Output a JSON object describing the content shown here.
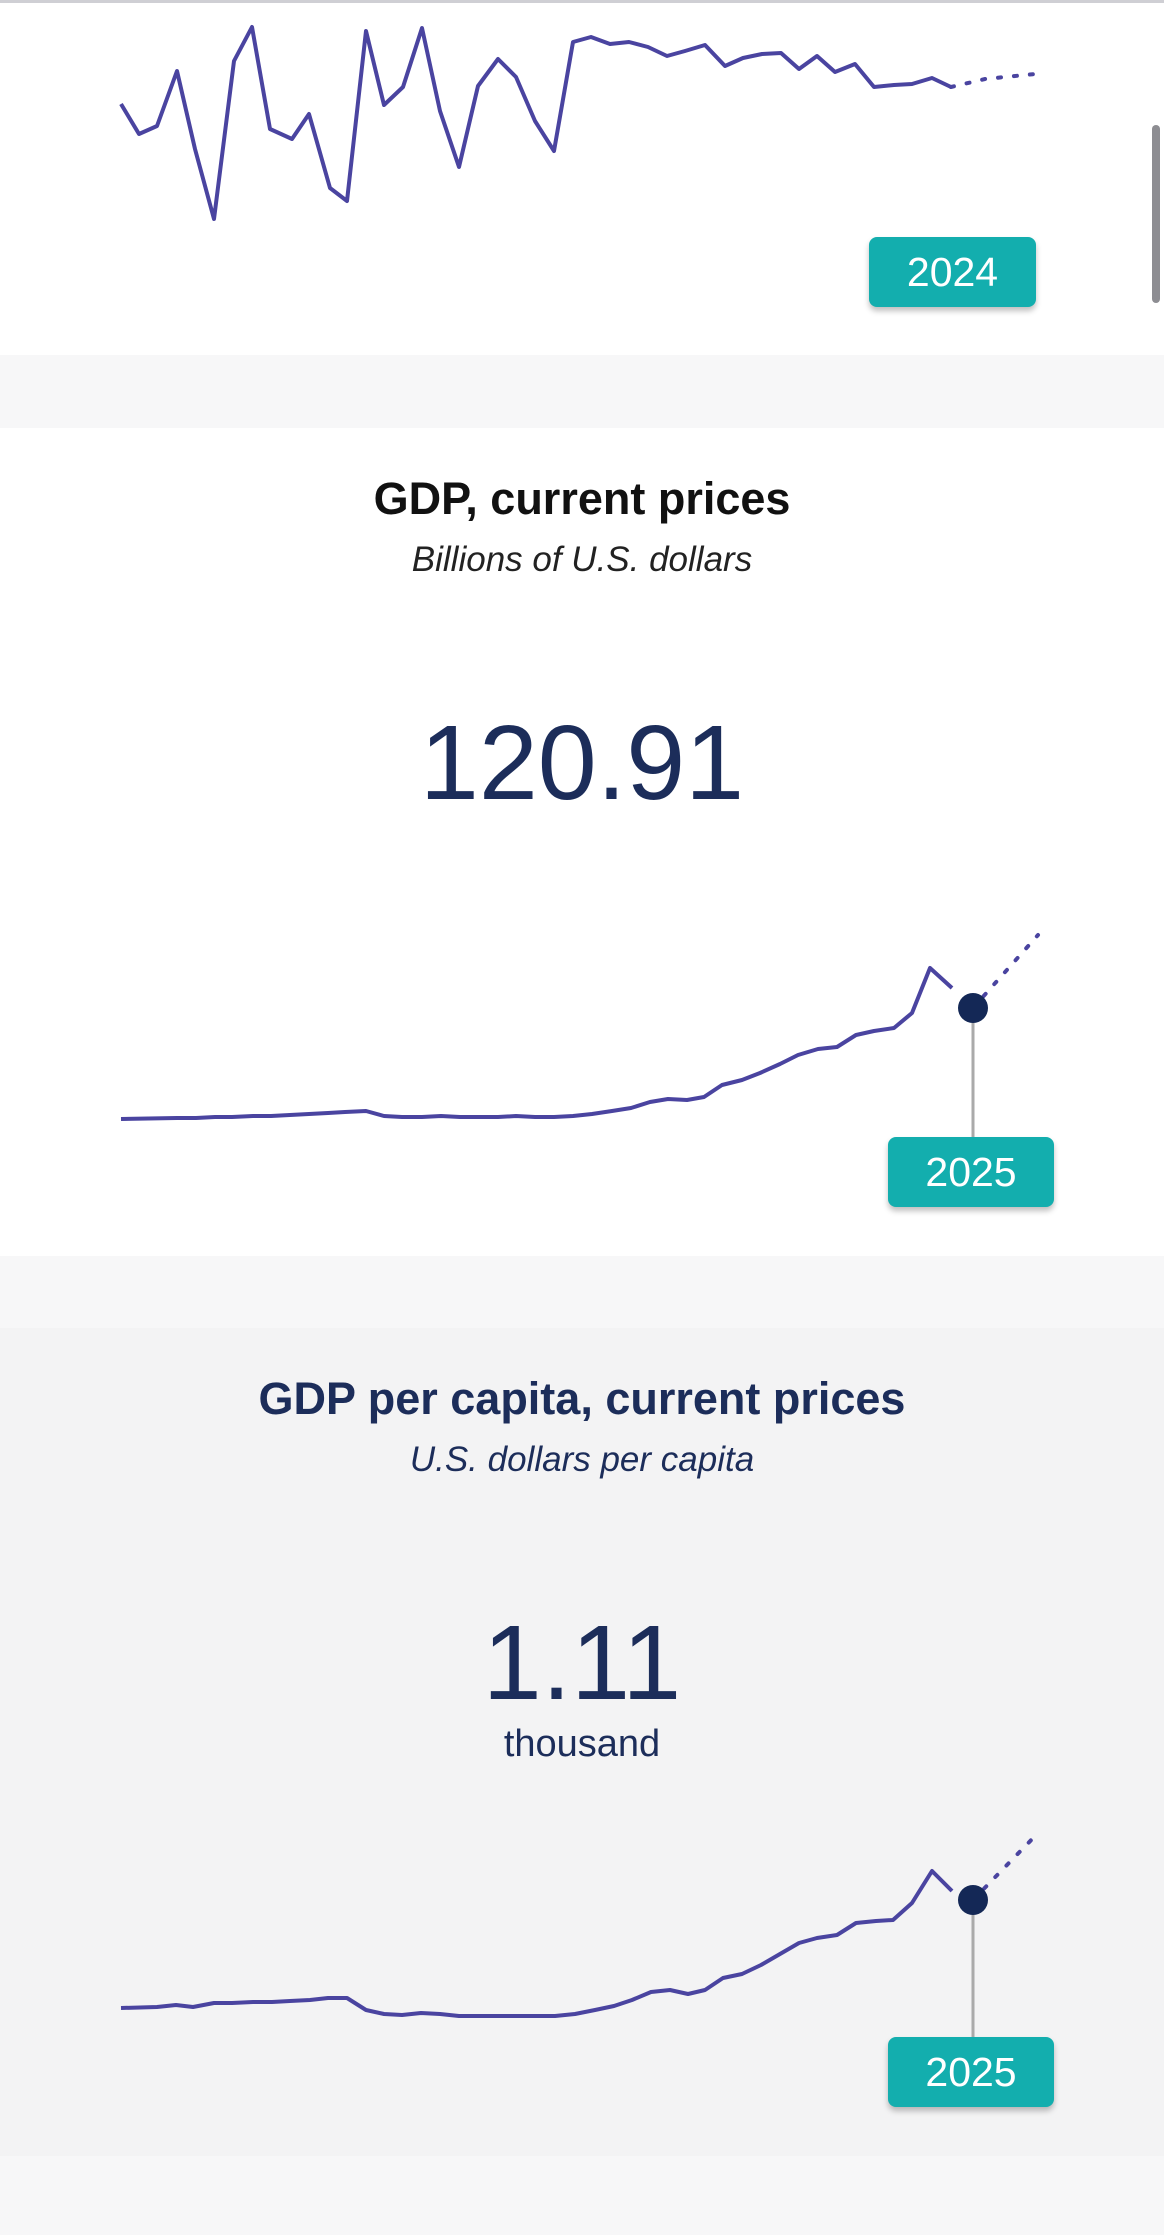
{
  "colors": {
    "line": "#4a44a0",
    "marker": "#142856",
    "badge": "#13aeae",
    "title_dark": "#1c2d5a"
  },
  "cards": [
    {
      "title": "",
      "subtitle": "",
      "value": "",
      "unit": "",
      "year_badge": "2024"
    },
    {
      "title": "GDP, current prices",
      "subtitle": "Billions of U.S. dollars",
      "value": "120.91",
      "unit": "",
      "year_badge": "2025"
    },
    {
      "title": "GDP per capita, current prices",
      "subtitle": "U.S. dollars per capita",
      "value": "1.11",
      "unit": "thousand",
      "year_badge": "2025"
    }
  ]
}
